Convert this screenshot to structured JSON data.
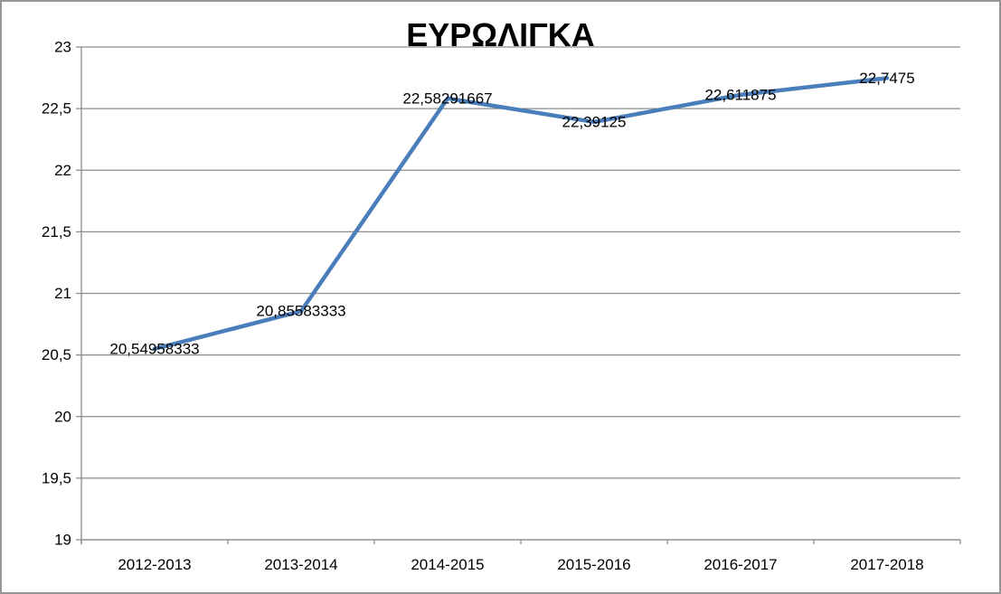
{
  "chart_data": {
    "type": "line",
    "title": "ΕΥΡΩΛΙΓΚΑ",
    "categories": [
      "2012-2013",
      "2013-2014",
      "2014-2015",
      "2015-2016",
      "2016-2017",
      "2017-2018"
    ],
    "series": [
      {
        "name": "ΕΥΡΩΛΙΓΚΑ",
        "values": [
          20.54958333,
          20.85583333,
          22.58291667,
          22.39125,
          22.611875,
          22.7475
        ],
        "point_labels": [
          "20,54958333",
          "20,85583333",
          "22,58291667",
          "22,39125",
          "22,611875",
          "22,7475"
        ]
      }
    ],
    "xlabel": "",
    "ylabel": "",
    "ylim": [
      19,
      23
    ],
    "y_step": 0.5,
    "y_tick_labels": [
      "19",
      "19,5",
      "20",
      "20,5",
      "21",
      "21,5",
      "22",
      "22,5",
      "23"
    ],
    "grid": true,
    "legend_position": "none",
    "colors": {
      "line": "#4A7EBB",
      "gridline": "#8C8C8C",
      "axis": "#8C8C8C",
      "text": "#000000",
      "title": "#000000",
      "border": "#969696",
      "background": "#ffffff"
    }
  }
}
